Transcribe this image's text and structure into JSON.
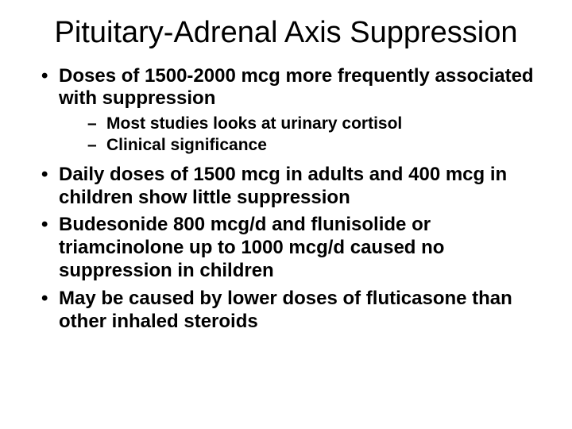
{
  "title": "Pituitary-Adrenal Axis Suppression",
  "bullets": [
    {
      "text": "Doses of 1500-2000 mcg more frequently associated with suppression",
      "subs": [
        "Most studies looks at urinary cortisol",
        "Clinical significance"
      ]
    },
    {
      "text": "Daily doses of 1500 mcg in adults and 400 mcg in children show little suppression",
      "subs": []
    },
    {
      "text": "Budesonide 800 mcg/d and flunisolide or triamcinolone up to 1000 mcg/d caused no suppression in children",
      "subs": []
    },
    {
      "text": "May be caused by lower doses of fluticasone than other inhaled steroids",
      "subs": []
    }
  ],
  "colors": {
    "background": "#ffffff",
    "text": "#000000"
  },
  "typography": {
    "title_fontsize": 38,
    "bullet_fontsize": 24,
    "sub_fontsize": 21,
    "font_family": "Arial"
  }
}
